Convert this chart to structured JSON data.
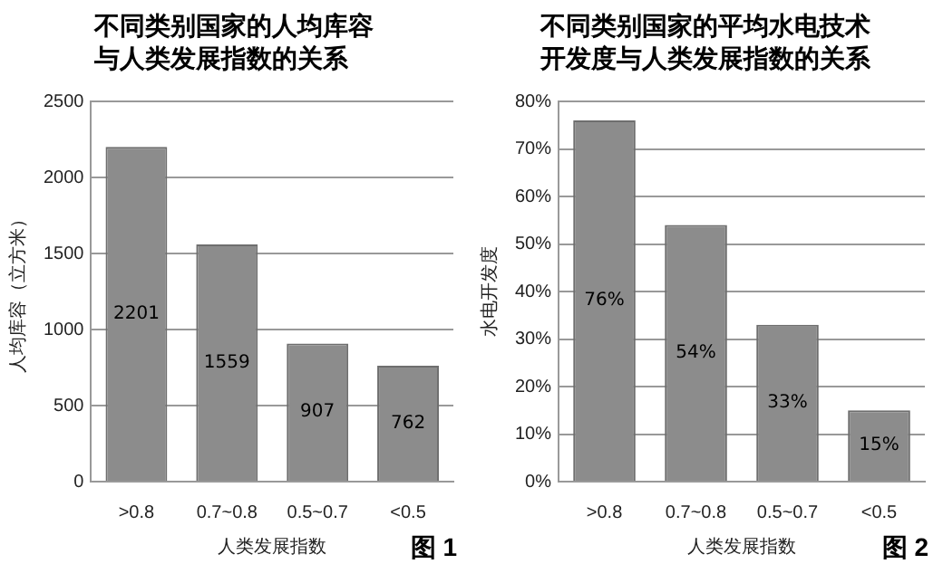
{
  "chart_data": [
    {
      "type": "bar",
      "title": "不同类别国家的人均库容与人类发展指数的关系",
      "xlabel": "人类发展指数",
      "ylabel": "人均库容（立方米）",
      "categories": [
        ">0.8",
        "0.7~0.8",
        "0.5~0.7",
        "<0.5"
      ],
      "values": [
        2201,
        1559,
        907,
        762
      ],
      "color": "#8c8c8c",
      "ylim": [
        0,
        2500
      ],
      "yticks": [
        0,
        500,
        1000,
        1500,
        2000,
        2500
      ],
      "grid": "y",
      "data_labels": true,
      "legend": false,
      "annotations": [
        "图 1"
      ]
    },
    {
      "type": "bar",
      "title": "不同类别国家的平均水电技术开发度与人类发展指数的关系",
      "xlabel": "人类发展指数",
      "ylabel": "水电开发度",
      "categories": [
        ">0.8",
        "0.7~0.8",
        "0.5~0.7",
        "<0.5"
      ],
      "values": [
        76,
        54,
        33,
        15
      ],
      "value_labels": [
        "76%",
        "54%",
        "33%",
        "15%"
      ],
      "color": "#8c8c8c",
      "ylim": [
        0,
        80
      ],
      "yticks": [
        {
          "value": 0,
          "label": "0%"
        },
        {
          "value": 10,
          "label": "10%"
        },
        {
          "value": 20,
          "label": "20%"
        },
        {
          "value": 30,
          "label": "30%"
        },
        {
          "value": 40,
          "label": "40%"
        },
        {
          "value": 50,
          "label": "50%"
        },
        {
          "value": 60,
          "label": "60%"
        },
        {
          "value": 70,
          "label": "70%"
        },
        {
          "value": 80,
          "label": "80%"
        }
      ],
      "grid": "y",
      "legend": false,
      "annotations": [
        "图 2"
      ]
    }
  ]
}
